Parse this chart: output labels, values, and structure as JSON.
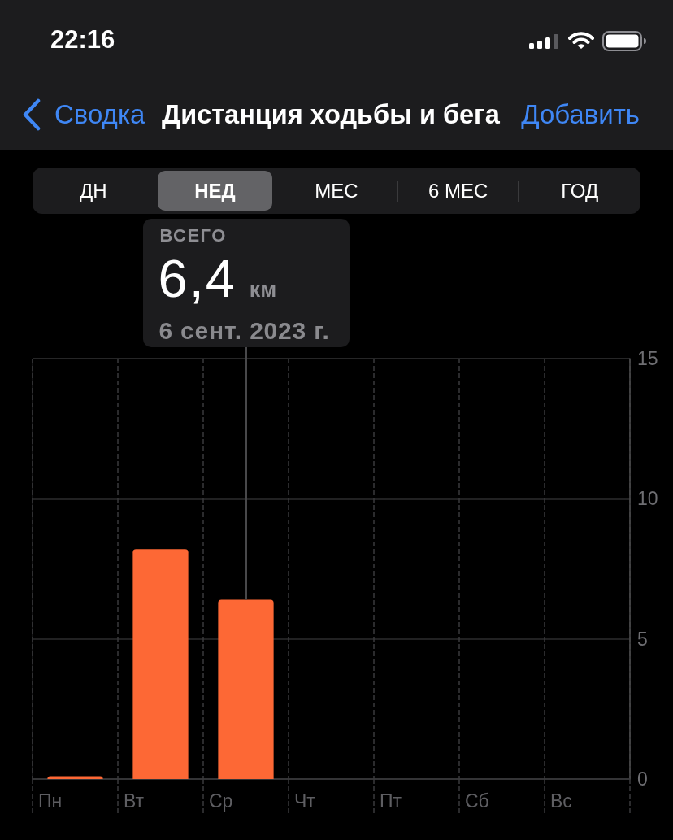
{
  "chart_data": {
    "type": "bar",
    "title": "Дистанция ходьбы и бега",
    "categories": [
      "Пн",
      "Вт",
      "Ср",
      "Чт",
      "Пт",
      "Сб",
      "Вс"
    ],
    "values": [
      0.1,
      8.2,
      6.4,
      null,
      null,
      null,
      null
    ],
    "color": "#fd6835",
    "ylim": [
      0,
      15
    ],
    "yticks": [
      0,
      5,
      10,
      15
    ],
    "grid": true,
    "ref_lines": [
      {
        "axis": "x",
        "value": "Ср",
        "color": "#48484a"
      }
    ],
    "annotations": [
      "22:16",
      "Сводка",
      "Добавить",
      "ДН",
      "НЕД",
      "МЕС",
      "6 МЕС",
      "ГОД",
      "ВСЕГО",
      "6,4",
      "км",
      "6 сент. 2023 г."
    ]
  }
}
